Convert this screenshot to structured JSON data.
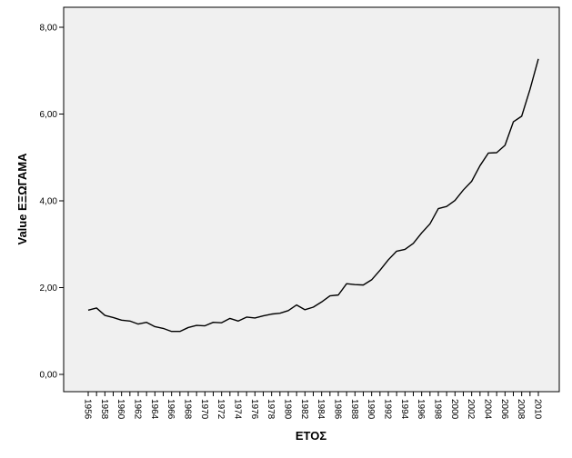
{
  "chart_data": {
    "type": "line",
    "xlabel": "ΕΤΟΣ",
    "ylabel": "Value ΕΞΩΓΑΜΑ",
    "ylim": [
      0,
      8
    ],
    "y_ticks": [
      "0,00",
      "2,00",
      "4,00",
      "6,00",
      "8,00"
    ],
    "x_tick_labels": [
      "1956",
      "1958",
      "1960",
      "1962",
      "1964",
      "1966",
      "1968",
      "1970",
      "1972",
      "1974",
      "1976",
      "1978",
      "1980",
      "1982",
      "1984",
      "1986",
      "1988",
      "1990",
      "1992",
      "1994",
      "1996",
      "1998",
      "2000",
      "2002",
      "2004",
      "2006",
      "2008",
      "2010"
    ],
    "grid": false,
    "plot_background": "#f0f0f0",
    "line_color": "#000000",
    "series": [
      {
        "x": [
          1956,
          1957,
          1958,
          1959,
          1960,
          1961,
          1962,
          1963,
          1964,
          1965,
          1966,
          1967,
          1968,
          1969,
          1970,
          1971,
          1972,
          1973,
          1974,
          1975,
          1976,
          1977,
          1978,
          1979,
          1980,
          1981,
          1982,
          1983,
          1984,
          1985,
          1986,
          1987,
          1988,
          1989,
          1990,
          1991,
          1992,
          1993,
          1994,
          1995,
          1996,
          1997,
          1998,
          1999,
          2000,
          2001,
          2002,
          2003,
          2004,
          2005,
          2006,
          2007,
          2008,
          2009,
          2010
        ],
        "values": [
          1.48,
          1.53,
          1.36,
          1.31,
          1.25,
          1.23,
          1.16,
          1.2,
          1.1,
          1.06,
          0.99,
          0.99,
          1.08,
          1.13,
          1.12,
          1.2,
          1.19,
          1.29,
          1.23,
          1.32,
          1.3,
          1.35,
          1.39,
          1.41,
          1.47,
          1.6,
          1.49,
          1.55,
          1.67,
          1.81,
          1.83,
          2.09,
          2.07,
          2.06,
          2.18,
          2.4,
          2.64,
          2.84,
          2.88,
          3.02,
          3.26,
          3.47,
          3.82,
          3.87,
          4.01,
          4.25,
          4.45,
          4.81,
          5.1,
          5.11,
          5.28,
          5.82,
          5.95,
          6.57,
          7.27
        ]
      }
    ]
  }
}
